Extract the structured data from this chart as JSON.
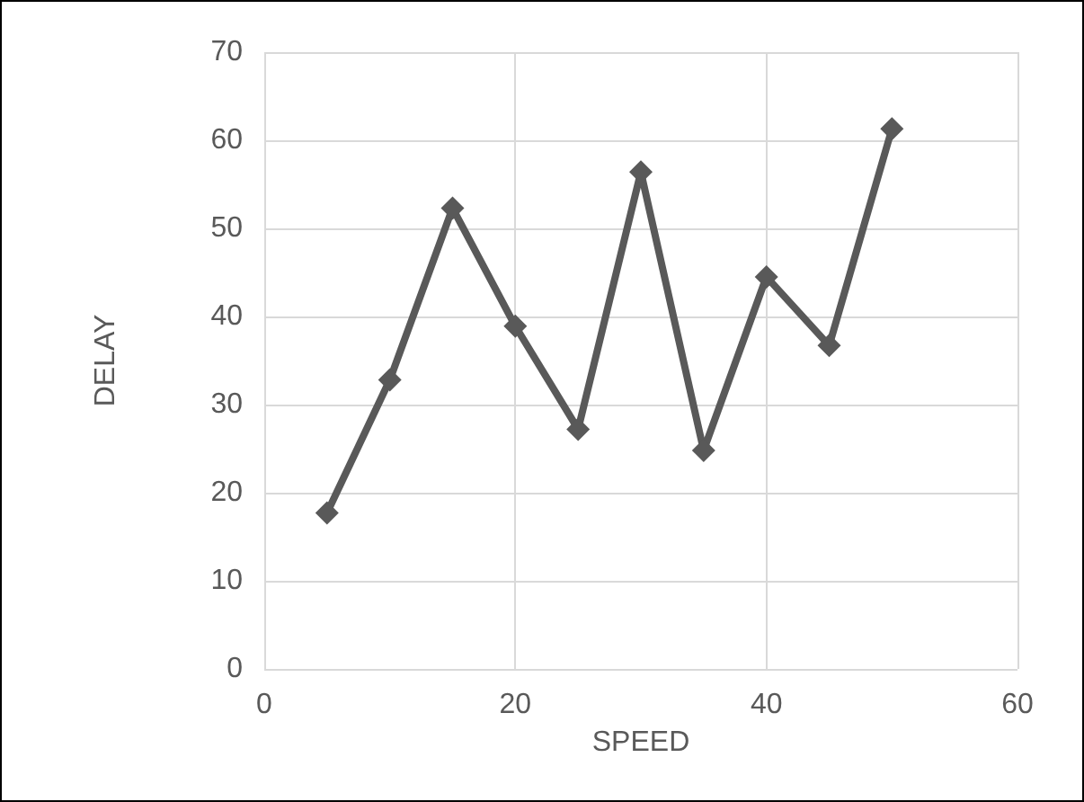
{
  "chart_data": {
    "type": "line",
    "xlabel": "SPEED",
    "ylabel": "DELAY",
    "x": [
      5,
      10,
      15,
      20,
      25,
      30,
      35,
      40,
      45,
      50
    ],
    "series": [
      {
        "color": "#595959",
        "values": [
          17.7,
          32.8,
          52.3,
          38.9,
          27.2,
          56.4,
          24.8,
          44.5,
          36.7,
          61.3
        ]
      }
    ],
    "xlim": [
      0,
      60
    ],
    "xticks": [
      0,
      20,
      40,
      60
    ],
    "ylim": [
      0,
      70
    ],
    "yticks": [
      0,
      10,
      20,
      30,
      40,
      50,
      60,
      70
    ],
    "grid": true,
    "marker": "diamond",
    "line_style": "solid"
  }
}
